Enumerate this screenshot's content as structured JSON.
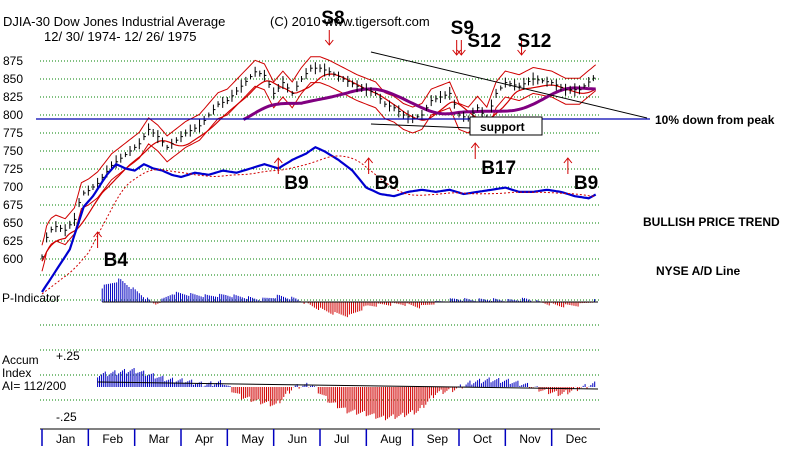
{
  "chart_data": {
    "type": "line",
    "title": "DJIA-30  Dow Jones Industrial Average",
    "date_range": "12/ 30/ 1974- 12/ 26/ 1975",
    "copyright": "(C) 2010 www.tigersoft.com",
    "ylim": [
      600,
      885
    ],
    "y_ticks": [
      "875",
      "850",
      "825",
      "800",
      "775",
      "750",
      "725",
      "700",
      "675",
      "650",
      "625",
      "600"
    ],
    "months": [
      "Jan",
      "Feb",
      "Mar",
      "Apr",
      "May",
      "Jun",
      "Jul",
      "Aug",
      "Sep",
      "Oct",
      "Nov",
      "Dec"
    ],
    "series": [
      {
        "name": "DJIA close",
        "x": [
          0,
          0.05,
          0.1,
          0.18,
          0.3,
          0.5,
          0.7,
          0.85,
          1,
          1.2,
          1.5,
          1.8,
          2.1,
          2.3,
          2.5,
          2.7,
          2.9,
          3.1,
          3.4,
          3.6,
          3.8,
          4,
          4.3,
          4.6,
          4.8,
          5,
          5.2,
          5.4,
          5.6,
          5.8,
          6,
          6.2,
          6.5,
          6.8,
          7,
          7.2,
          7.4,
          7.6,
          7.8,
          8,
          8.2,
          8.4,
          8.6,
          8.8,
          9,
          9.2,
          9.4,
          9.6,
          9.8,
          10,
          10.3,
          10.6,
          11,
          11.3,
          11.6,
          11.97
        ],
        "values": [
          603,
          615,
          630,
          640,
          645,
          640,
          655,
          690,
          695,
          705,
          730,
          745,
          760,
          780,
          770,
          755,
          765,
          775,
          785,
          800,
          815,
          820,
          840,
          860,
          855,
          830,
          845,
          830,
          850,
          865,
          865,
          860,
          850,
          840,
          835,
          830,
          815,
          810,
          800,
          795,
          800,
          820,
          825,
          830,
          800,
          795,
          810,
          795,
          830,
          845,
          840,
          850,
          845,
          835,
          835,
          855
        ]
      },
      {
        "name": "NYSE A/D Line",
        "x": [
          0,
          0.3,
          0.6,
          0.9,
          1.1,
          1.4,
          1.6,
          1.8,
          2,
          2.2,
          2.4,
          2.6,
          2.8,
          3,
          3.3,
          3.6,
          3.9,
          4.2,
          4.5,
          4.8,
          5.1,
          5.4,
          5.7,
          5.9,
          6.1,
          6.4,
          6.7,
          7,
          7.3,
          7.6,
          7.9,
          8.2,
          8.5,
          8.8,
          9.1,
          9.4,
          9.7,
          10,
          10.3,
          10.6,
          10.9,
          11.2,
          11.5,
          11.8,
          11.97
        ],
        "values": [
          0,
          10,
          20,
          40,
          45,
          55,
          60,
          58,
          57,
          60,
          58,
          57,
          55,
          54,
          56,
          55,
          57,
          56,
          58,
          60,
          58,
          62,
          65,
          68,
          66,
          62,
          57,
          49,
          46,
          45,
          47,
          48,
          47,
          48,
          46,
          47,
          48,
          49,
          47,
          47,
          48,
          47,
          45,
          44,
          46
        ]
      },
      {
        "name": "P-Indicator",
        "values": [
          30,
          45,
          20,
          -5,
          18,
          15,
          12,
          14,
          10,
          5,
          12,
          6,
          -10,
          -22,
          -28,
          -8,
          -5,
          -4,
          -10,
          0,
          6,
          4,
          5,
          3,
          6,
          -2,
          -8,
          -6,
          4
        ]
      },
      {
        "name": "Accum Index",
        "values": [
          0.1,
          0.12,
          0.14,
          0.1,
          0.06,
          0.05,
          0.02,
          0.04,
          -0.08,
          -0.12,
          -0.15,
          0,
          0.02,
          -0.12,
          -0.2,
          -0.22,
          -0.26,
          -0.24,
          -0.2,
          -0.05,
          -0.02,
          0.04,
          0.06,
          0.05,
          0.02,
          -0.03,
          -0.06,
          -0.01,
          0.03
        ]
      }
    ],
    "signals": [
      {
        "label": "S8",
        "type": "sell",
        "month": 6.2
      },
      {
        "label": "S9",
        "type": "sell",
        "month": 8.95
      },
      {
        "label": "S12",
        "type": "sell",
        "month": 9.05
      },
      {
        "label": "S12",
        "type": "sell",
        "month": 10.35
      },
      {
        "label": "B4",
        "type": "buy",
        "month": 1.2
      },
      {
        "label": "B9",
        "type": "buy",
        "month": 5.1
      },
      {
        "label": "B9",
        "type": "buy",
        "month": 7.05
      },
      {
        "label": "B17",
        "type": "buy",
        "month": 9.35
      },
      {
        "label": "B9",
        "type": "buy",
        "month": 11.35
      }
    ],
    "annotations": {
      "support": "support",
      "ten_down": "10% down from peak",
      "trend": "BULLISH PRICE TREND",
      "ad_label": "NYSE A/D Line",
      "p_label": "P-Indicator",
      "accum_label_1": "Accum",
      "accum_label_2": "Index",
      "ai_value": "AI= 112/200",
      "ai_plus": "+.25",
      "ai_minus": "-.25"
    },
    "colors": {
      "price": "#000000",
      "band": "#d00000",
      "ma200": "#800080",
      "ad": "#0000d0",
      "blue_line": "#0000c0",
      "grid": "#008000",
      "sell": "#d00000"
    }
  }
}
